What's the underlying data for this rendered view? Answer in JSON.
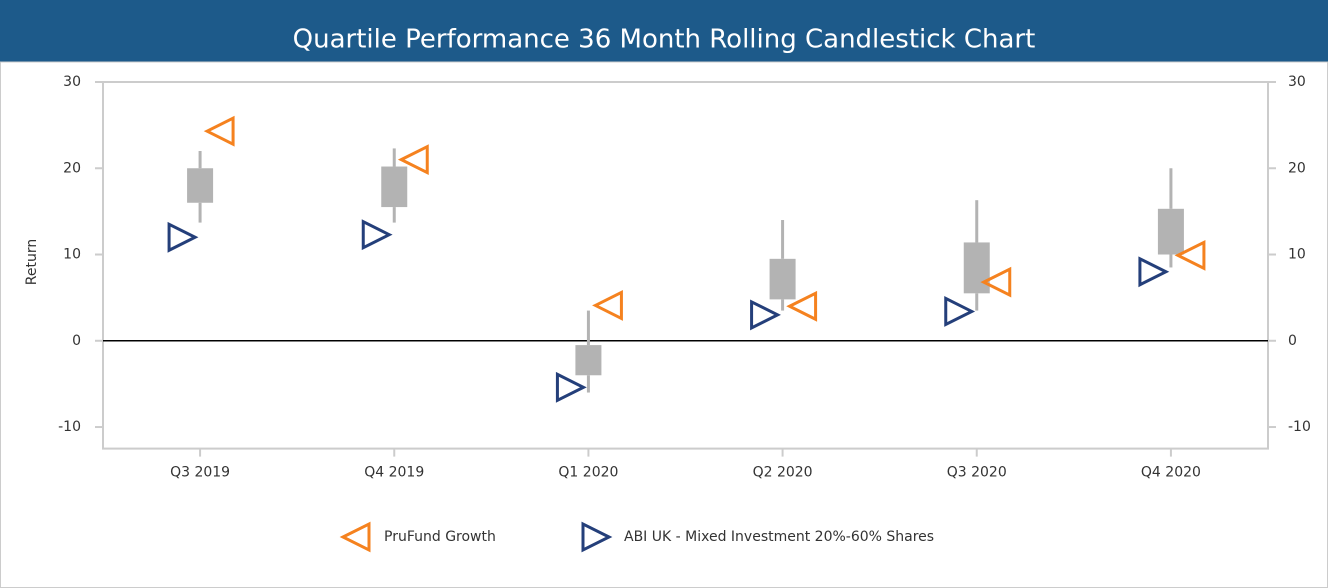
{
  "chart_data": {
    "type": "candlestick",
    "title": "Quartile Performance 36 Month Rolling Candlestick Chart",
    "y_label": "Return",
    "categories": [
      "Q3 2019",
      "Q4 2019",
      "Q1 2020",
      "Q2 2020",
      "Q3 2020",
      "Q4 2020"
    ],
    "low": [
      13.7,
      13.7,
      -6,
      3.5,
      3.5,
      8.5
    ],
    "q1": [
      16,
      15.5,
      -4,
      4.8,
      5.5,
      10
    ],
    "q3": [
      20,
      20.2,
      -0.5,
      9.5,
      11.4,
      15.3
    ],
    "high": [
      22,
      22.3,
      3.5,
      14,
      16.3,
      20
    ],
    "box_color": "#b3b3b3",
    "series": [
      {
        "name": "PruFund Growth",
        "color": "#f5821f",
        "marker": "triangle-left",
        "values": [
          24.3,
          21,
          4.1,
          4,
          6.8,
          9.9
        ]
      },
      {
        "name": "ABI UK - Mixed Investment 20%-60% Shares",
        "color": "#243f7a",
        "marker": "triangle-right",
        "values": [
          12,
          12.3,
          -5.4,
          3,
          3.4,
          8
        ]
      }
    ],
    "ylim": [
      -12.5,
      30
    ],
    "yticks": [
      -10,
      0,
      10,
      20,
      30
    ],
    "y2lim": [
      -12.5,
      30
    ],
    "y2ticks": [
      -10,
      0,
      10,
      20,
      30
    ],
    "legend": "bottom"
  }
}
